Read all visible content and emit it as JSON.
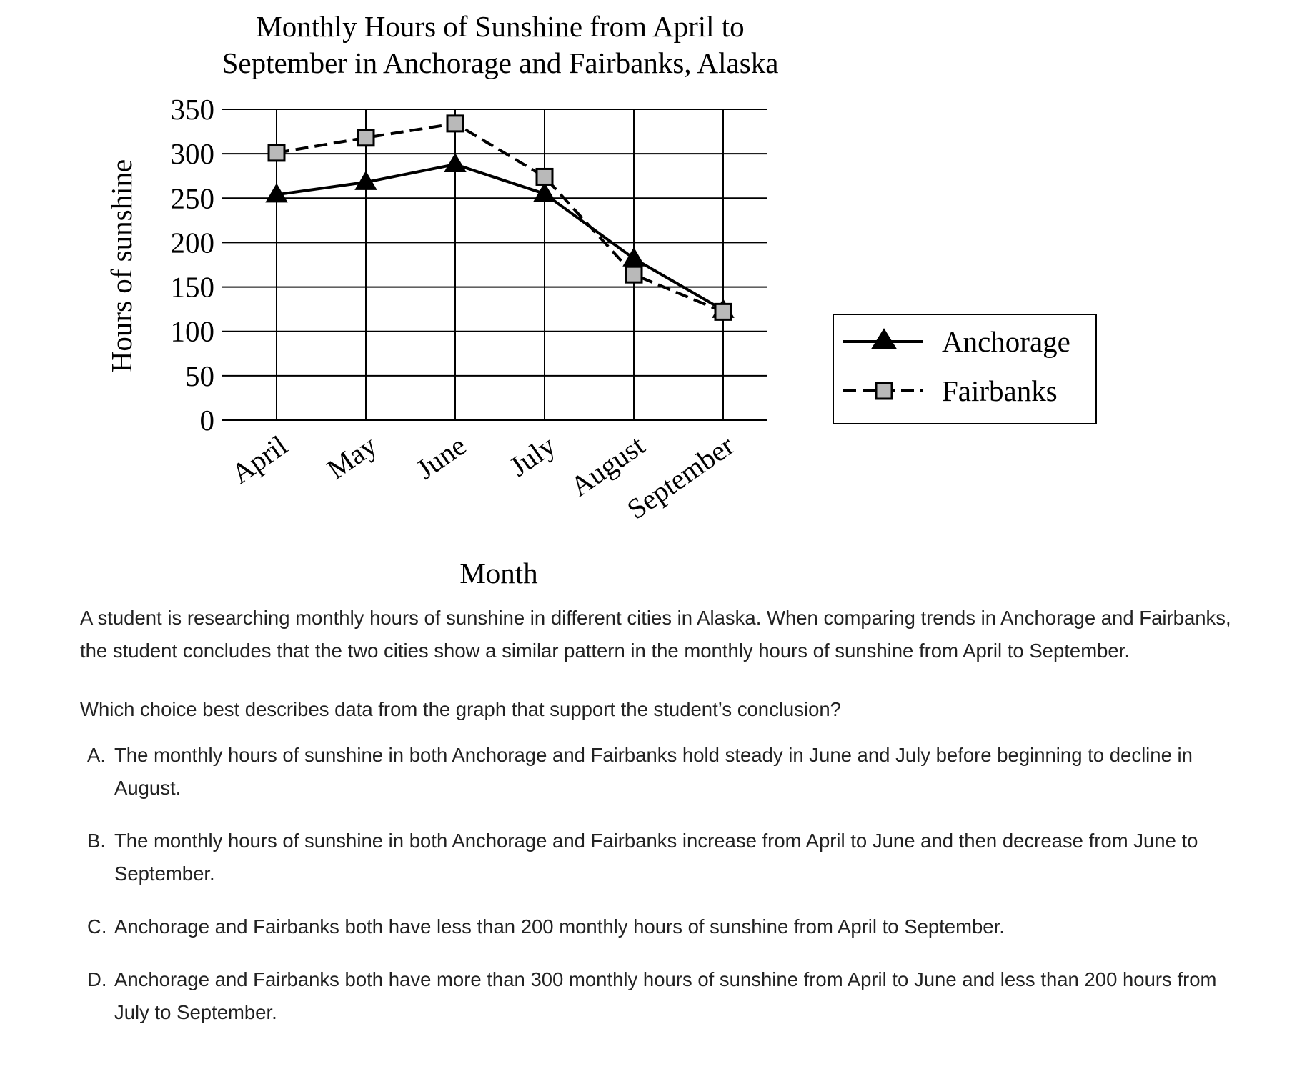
{
  "chart_data": {
    "type": "line",
    "title_line1": "Monthly Hours of Sunshine from April to",
    "title_line2": "September in Anchorage and Fairbanks, Alaska",
    "xlabel": "Month",
    "ylabel": "Hours of sunshine",
    "categories": [
      "April",
      "May",
      "June",
      "July",
      "August",
      "September"
    ],
    "ylim": [
      0,
      350
    ],
    "yticks": [
      0,
      50,
      100,
      150,
      200,
      250,
      300,
      350
    ],
    "grid": true,
    "legend_position": "right",
    "series": [
      {
        "name": "Anchorage",
        "line_style": "solid",
        "marker": "triangle",
        "values": [
          254,
          268,
          288,
          255,
          182,
          124
        ]
      },
      {
        "name": "Fairbanks",
        "line_style": "dashed",
        "marker": "square",
        "values": [
          301,
          318,
          334,
          274,
          164,
          122
        ]
      }
    ]
  },
  "question": {
    "stem": "A student is researching monthly hours of sunshine in different cities in Alaska. When comparing trends in Anchorage and Fairbanks, the student concludes that the two cities show a similar pattern in the monthly hours of sunshine from April to September.",
    "prompt": "Which choice best describes data from the graph that support the student’s conclusion?",
    "choices": [
      {
        "letter": "A.",
        "text": "The monthly hours of sunshine in both Anchorage and Fairbanks hold steady in June and July before beginning to decline in August."
      },
      {
        "letter": "B.",
        "text": "The monthly hours of sunshine in both Anchorage and Fairbanks increase from April to June and then decrease from June to September."
      },
      {
        "letter": "C.",
        "text": "Anchorage and Fairbanks both have less than 200 monthly hours of sunshine from April to September."
      },
      {
        "letter": "D.",
        "text": "Anchorage and Fairbanks both have more than 300 monthly hours of sunshine from April to June and less than 200 hours from July to September."
      }
    ]
  }
}
